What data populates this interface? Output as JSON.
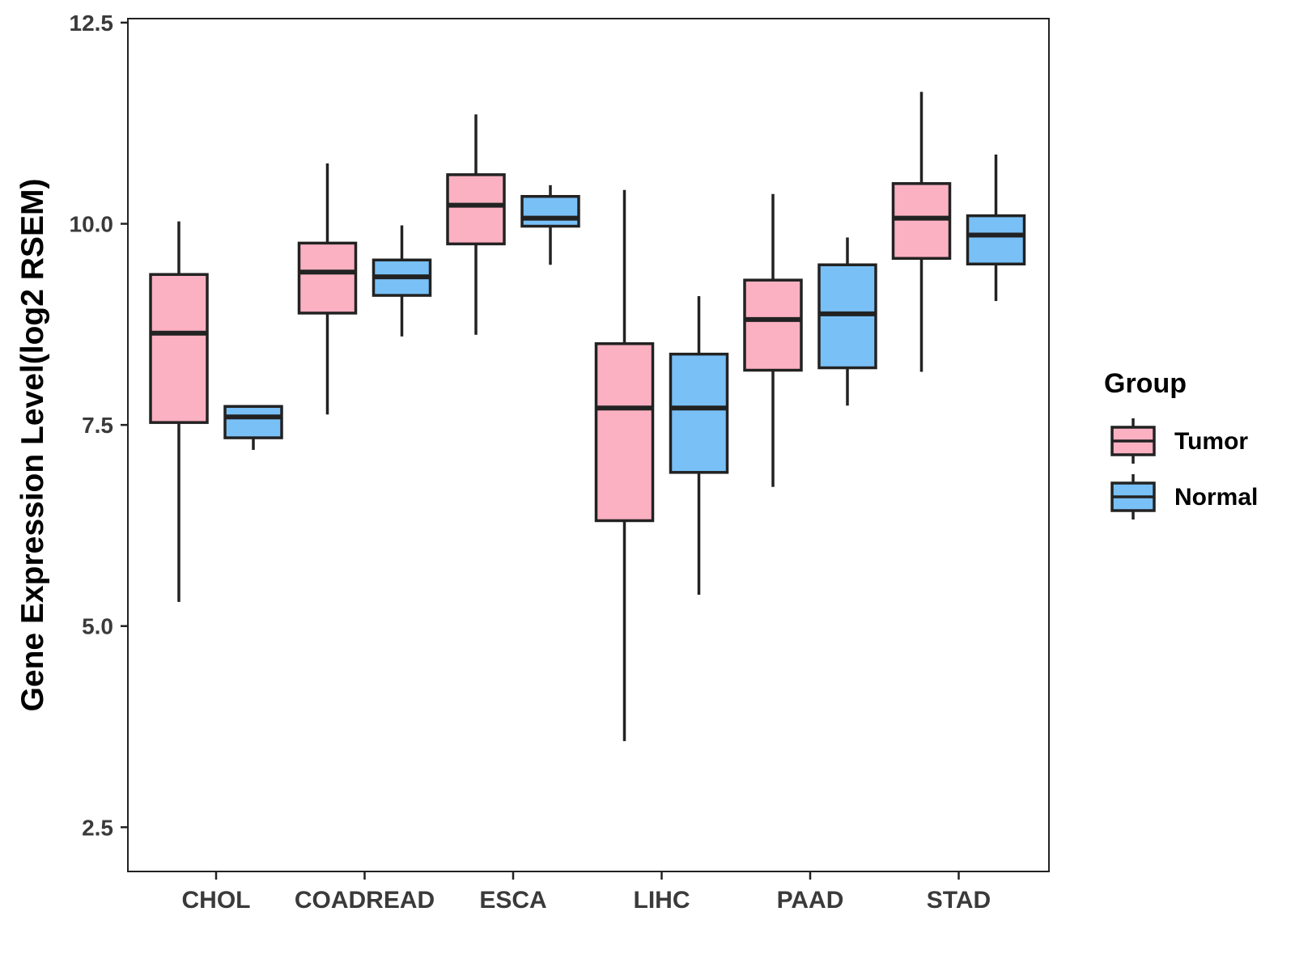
{
  "chart_data": {
    "type": "boxplot",
    "title": "",
    "xlabel": "",
    "ylabel": "Gene Expression Level(log2 RSEM)",
    "ylim": [
      1.95,
      12.55
    ],
    "yticks": [
      2.5,
      5.0,
      7.5,
      10.0,
      12.5
    ],
    "ytick_labels": [
      "2.5",
      "5.0",
      "7.5",
      "10.0",
      "12.5"
    ],
    "categories": [
      "CHOL",
      "COADREAD",
      "ESCA",
      "LIHC",
      "PAAD",
      "STAD"
    ],
    "legend": {
      "title": "Group",
      "position": "right",
      "entries": [
        "Tumor",
        "Normal"
      ]
    },
    "series": [
      {
        "name": "Tumor",
        "color": "#FBB1C2",
        "boxes": [
          {
            "min": 5.3,
            "q1": 7.53,
            "median": 8.64,
            "q3": 9.37,
            "max": 10.03
          },
          {
            "min": 7.63,
            "q1": 8.89,
            "median": 9.4,
            "q3": 9.76,
            "max": 10.75
          },
          {
            "min": 8.62,
            "q1": 9.75,
            "median": 10.23,
            "q3": 10.61,
            "max": 11.36
          },
          {
            "min": 3.57,
            "q1": 6.31,
            "median": 7.71,
            "q3": 8.51,
            "max": 10.42
          },
          {
            "min": 6.73,
            "q1": 8.18,
            "median": 8.81,
            "q3": 9.3,
            "max": 10.37
          },
          {
            "min": 8.16,
            "q1": 9.57,
            "median": 10.07,
            "q3": 10.5,
            "max": 11.64
          }
        ]
      },
      {
        "name": "Normal",
        "color": "#79C0F7",
        "boxes": [
          {
            "min": 7.19,
            "q1": 7.34,
            "median": 7.6,
            "q3": 7.73,
            "max": 7.73
          },
          {
            "min": 8.6,
            "q1": 9.11,
            "median": 9.34,
            "q3": 9.55,
            "max": 9.98
          },
          {
            "min": 9.49,
            "q1": 9.97,
            "median": 10.07,
            "q3": 10.34,
            "max": 10.48
          },
          {
            "min": 5.39,
            "q1": 6.91,
            "median": 7.71,
            "q3": 8.38,
            "max": 9.1
          },
          {
            "min": 7.74,
            "q1": 8.21,
            "median": 8.88,
            "q3": 9.49,
            "max": 9.83
          },
          {
            "min": 9.04,
            "q1": 9.5,
            "median": 9.86,
            "q3": 10.1,
            "max": 10.86
          }
        ]
      }
    ]
  }
}
